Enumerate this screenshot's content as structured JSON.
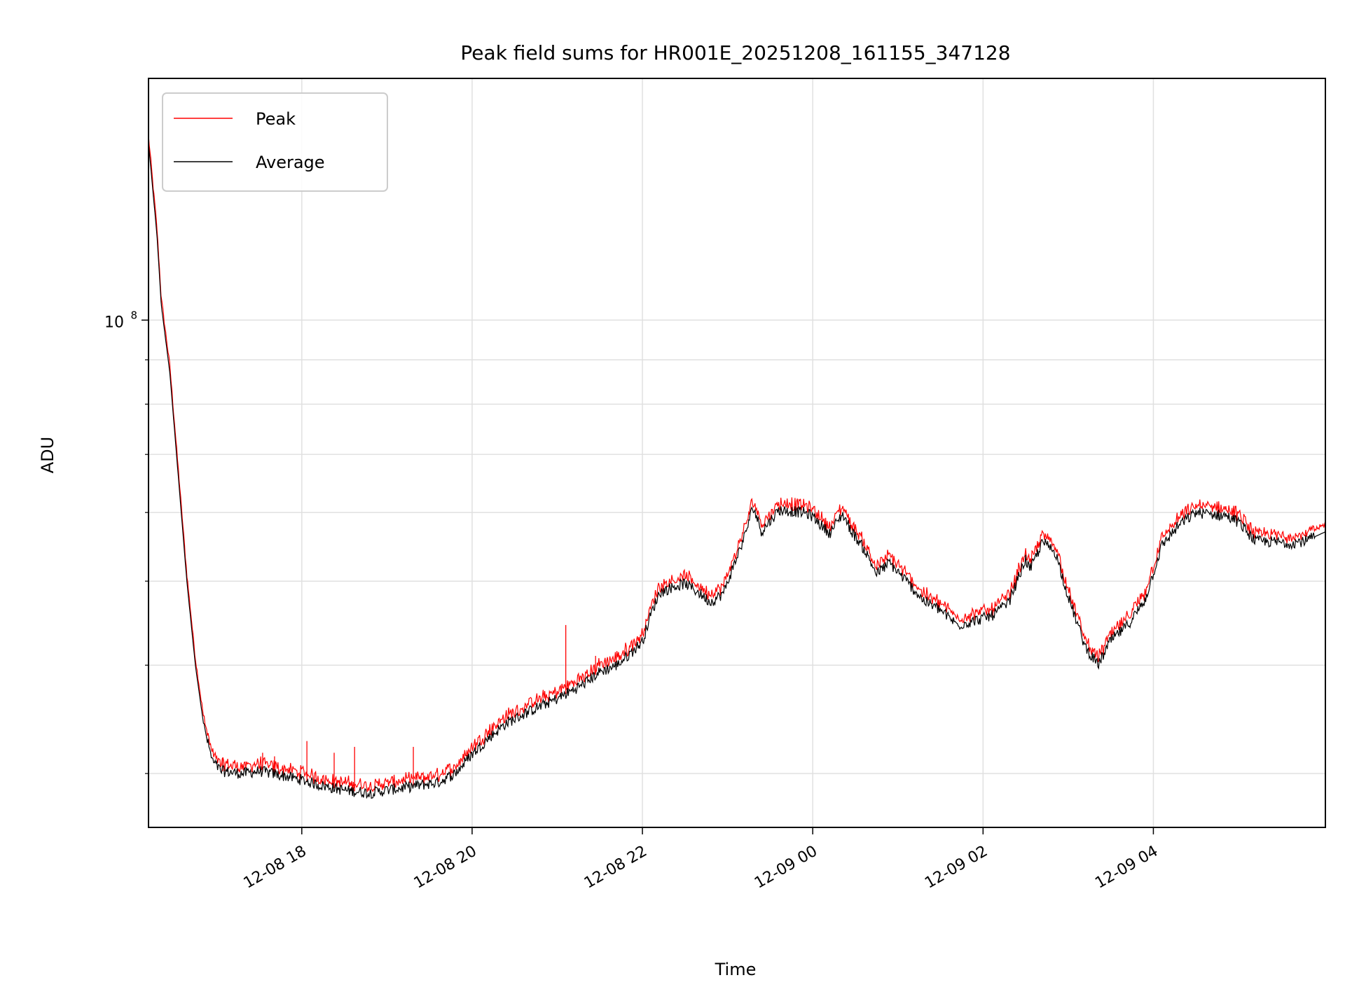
{
  "chart_data": {
    "type": "line",
    "title": "Peak field sums for HR001E_20251208_161155_347128",
    "xlabel": "Time",
    "ylabel": "ADU",
    "yscale": "log",
    "xlim_hours_from_midnight_12_08": [
      16.2,
      30.02
    ],
    "ylim": [
      26000000,
      190000000
    ],
    "x_ticks": [
      {
        "hour": 18,
        "label": "12-08 18"
      },
      {
        "hour": 20,
        "label": "12-08 20"
      },
      {
        "hour": 22,
        "label": "12-08 22"
      },
      {
        "hour": 24,
        "label": "12-09 00"
      },
      {
        "hour": 26,
        "label": "12-09 02"
      },
      {
        "hour": 28,
        "label": "12-09 04"
      }
    ],
    "y_major_tick": {
      "value": 100000000,
      "label_base": "10",
      "label_exp": "8"
    },
    "y_minor_ticks": [
      30000000,
      40000000,
      50000000,
      60000000,
      70000000,
      80000000,
      90000000,
      200000000
    ],
    "grid": true,
    "legend_position": "top-left",
    "series": [
      {
        "name": "Peak",
        "color": "#ff0000",
        "spikes": [
          {
            "hour": 16.88,
            "value": 33000000
          },
          {
            "hour": 17.07,
            "value": 31300000
          },
          {
            "hour": 17.54,
            "value": 31700000
          },
          {
            "hour": 17.68,
            "value": 31400000
          },
          {
            "hour": 18.06,
            "value": 32700000
          },
          {
            "hour": 18.38,
            "value": 31700000
          },
          {
            "hour": 18.62,
            "value": 32200000
          },
          {
            "hour": 19.31,
            "value": 32200000
          },
          {
            "hour": 21.1,
            "value": 44500000
          },
          {
            "hour": 21.45,
            "value": 41000000
          },
          {
            "hour": 28.45,
            "value": 59500000
          },
          {
            "hour": 28.7,
            "value": 59500000
          }
        ]
      },
      {
        "name": "Average",
        "color": "#000000",
        "points": [
          [
            16.2,
            160000000
          ],
          [
            16.3,
            125000000
          ],
          [
            16.35,
            104000000
          ],
          [
            16.45,
            87000000
          ],
          [
            16.55,
            66000000
          ],
          [
            16.65,
            50000000
          ],
          [
            16.75,
            40000000
          ],
          [
            16.85,
            34000000
          ],
          [
            16.95,
            31000000
          ],
          [
            17.05,
            30200000
          ],
          [
            17.3,
            30000000
          ],
          [
            17.5,
            30200000
          ],
          [
            17.8,
            29800000
          ],
          [
            18.0,
            29500000
          ],
          [
            18.2,
            29100000
          ],
          [
            18.5,
            28700000
          ],
          [
            18.8,
            28500000
          ],
          [
            19.1,
            28800000
          ],
          [
            19.4,
            29100000
          ],
          [
            19.6,
            29300000
          ],
          [
            19.8,
            30000000
          ],
          [
            20.0,
            31600000
          ],
          [
            20.2,
            33000000
          ],
          [
            20.4,
            34300000
          ],
          [
            20.7,
            35500000
          ],
          [
            21.0,
            36600000
          ],
          [
            21.3,
            38000000
          ],
          [
            21.5,
            39300000
          ],
          [
            21.7,
            40000000
          ],
          [
            21.85,
            41200000
          ],
          [
            22.0,
            42600000
          ],
          [
            22.1,
            45800000
          ],
          [
            22.2,
            48500000
          ],
          [
            22.35,
            49200000
          ],
          [
            22.5,
            49700000
          ],
          [
            22.65,
            48600000
          ],
          [
            22.8,
            47300000
          ],
          [
            22.95,
            48400000
          ],
          [
            23.1,
            53000000
          ],
          [
            23.2,
            56300000
          ],
          [
            23.3,
            61000000
          ],
          [
            23.4,
            57000000
          ],
          [
            23.5,
            58700000
          ],
          [
            23.6,
            60400000
          ],
          [
            23.75,
            60200000
          ],
          [
            23.9,
            60000000
          ],
          [
            24.0,
            59400000
          ],
          [
            24.1,
            58000000
          ],
          [
            24.2,
            56800000
          ],
          [
            24.35,
            59800000
          ],
          [
            24.45,
            57200000
          ],
          [
            24.6,
            54500000
          ],
          [
            24.75,
            51000000
          ],
          [
            24.9,
            52500000
          ],
          [
            25.1,
            50000000
          ],
          [
            25.3,
            47500000
          ],
          [
            25.5,
            46300000
          ],
          [
            25.7,
            44500000
          ],
          [
            25.9,
            45000000
          ],
          [
            26.1,
            45600000
          ],
          [
            26.3,
            47200000
          ],
          [
            26.5,
            53000000
          ],
          [
            26.55,
            51500000
          ],
          [
            26.7,
            55500000
          ],
          [
            26.85,
            54000000
          ],
          [
            27.0,
            48000000
          ],
          [
            27.2,
            42000000
          ],
          [
            27.35,
            40000000
          ],
          [
            27.5,
            42700000
          ],
          [
            27.7,
            44500000
          ],
          [
            27.9,
            47500000
          ],
          [
            28.1,
            55000000
          ],
          [
            28.3,
            58000000
          ],
          [
            28.5,
            60000000
          ],
          [
            28.7,
            59700000
          ],
          [
            28.85,
            59500000
          ],
          [
            29.0,
            58500000
          ],
          [
            29.2,
            55600000
          ],
          [
            29.4,
            55500000
          ],
          [
            29.6,
            55300000
          ],
          [
            29.8,
            55700000
          ],
          [
            30.02,
            57000000
          ]
        ]
      }
    ]
  }
}
